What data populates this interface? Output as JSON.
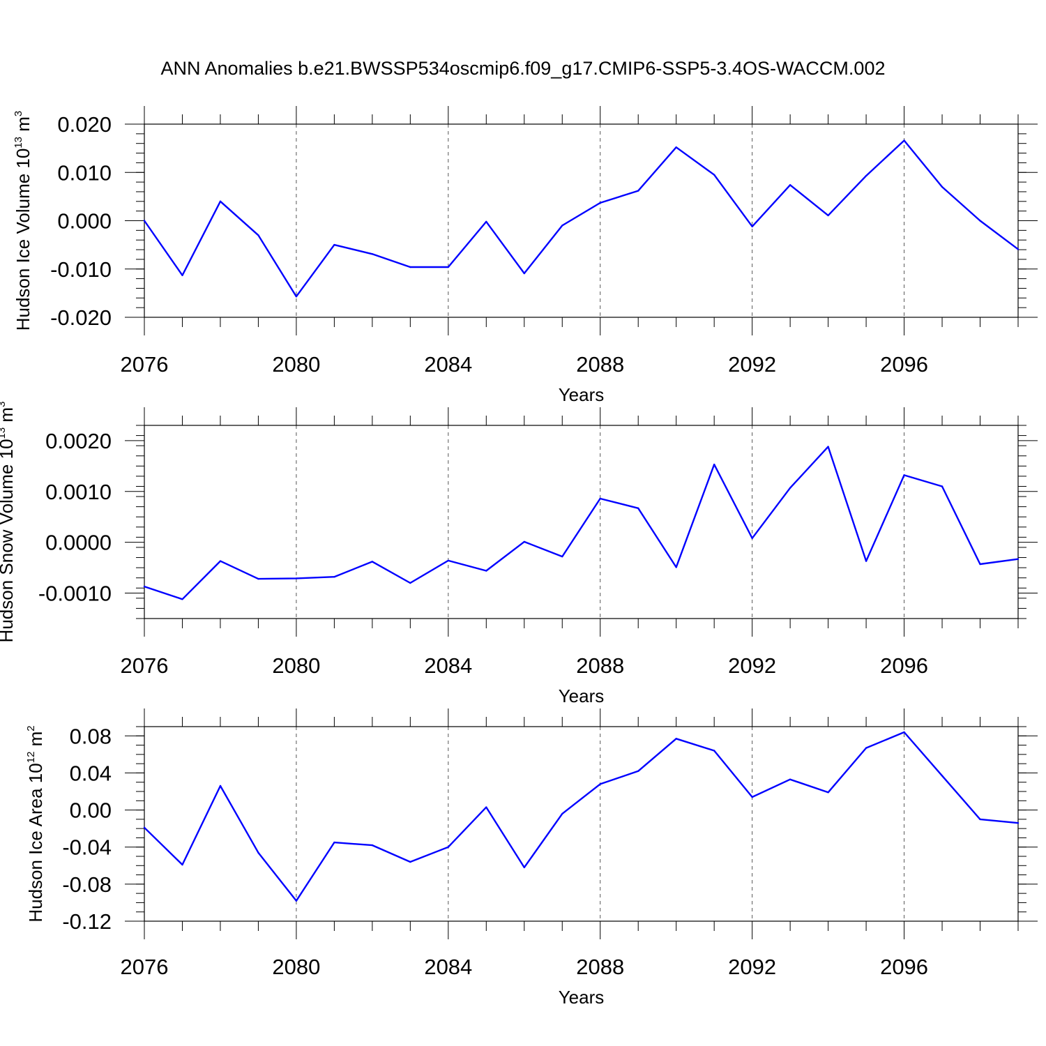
{
  "title": "ANN Anomalies b.e21.BWSSP534oscmip6.f09_g17.CMIP6-SSP5-3.4OS-WACCM.002",
  "colors": {
    "line": "#0000ff",
    "axes": "#000000",
    "grid": "#555555"
  },
  "chart_data": [
    {
      "type": "line",
      "ylabel": {
        "text": "Hudson Ice Volume 10",
        "exponent": "13",
        "unit": "m",
        "unit_exponent": "3"
      },
      "xlabel": "Years",
      "xlim": [
        2076,
        2099
      ],
      "ylim": [
        -0.02,
        0.02
      ],
      "x_ticks": [
        2076,
        2080,
        2084,
        2088,
        2092,
        2096
      ],
      "y_ticks": [
        -0.02,
        -0.01,
        0.0,
        0.01,
        0.02
      ],
      "y_tick_labels": [
        "-0.020",
        "-0.010",
        "0.000",
        "0.010",
        "0.020"
      ],
      "y_minor_step": 0.002,
      "grid": "x-major-dashed",
      "x": [
        2076,
        2077,
        2078,
        2079,
        2080,
        2081,
        2082,
        2083,
        2084,
        2085,
        2086,
        2087,
        2088,
        2089,
        2090,
        2091,
        2092,
        2093,
        2094,
        2095,
        2096,
        2097,
        2098,
        2099
      ],
      "y": [
        0.0,
        -0.0113,
        0.004,
        -0.003,
        -0.0157,
        -0.005,
        -0.0069,
        -0.0096,
        -0.0096,
        -0.0002,
        -0.0109,
        -0.001,
        0.0037,
        0.0062,
        0.0152,
        0.0095,
        -0.0012,
        0.0074,
        0.0011,
        0.0093,
        0.0166,
        0.007,
        0.0,
        -0.0059
      ]
    },
    {
      "type": "line",
      "ylabel": {
        "text": "Hudson Snow Volume 10",
        "exponent": "13",
        "unit": "m",
        "unit_exponent": "3"
      },
      "xlabel": "Years",
      "xlim": [
        2076,
        2099
      ],
      "ylim": [
        -0.0015,
        0.0023
      ],
      "x_ticks": [
        2076,
        2080,
        2084,
        2088,
        2092,
        2096
      ],
      "y_ticks": [
        -0.001,
        0.0,
        0.001,
        0.002
      ],
      "y_tick_labels": [
        "-0.0010",
        "0.0000",
        "0.0010",
        "0.0020"
      ],
      "y_minor_step": 0.0002,
      "grid": "x-major-dashed",
      "x": [
        2076,
        2077,
        2078,
        2079,
        2080,
        2081,
        2082,
        2083,
        2084,
        2085,
        2086,
        2087,
        2088,
        2089,
        2090,
        2091,
        2092,
        2093,
        2094,
        2095,
        2096,
        2097,
        2098,
        2099
      ],
      "y": [
        -0.00087,
        -0.00112,
        -0.00037,
        -0.00072,
        -0.00071,
        -0.00068,
        -0.00038,
        -0.0008,
        -0.00036,
        -0.00056,
        1e-05,
        -0.00028,
        0.00086,
        0.00067,
        -0.00049,
        0.00153,
        8e-05,
        0.00107,
        0.00188,
        -0.00037,
        0.00132,
        0.0011,
        -0.00043,
        -0.00033
      ]
    },
    {
      "type": "line",
      "ylabel": {
        "text": "Hudson Ice Area 10",
        "exponent": "12",
        "unit": "m",
        "unit_exponent": "2"
      },
      "xlabel": "Years",
      "xlim": [
        2076,
        2099
      ],
      "ylim": [
        -0.12,
        0.09
      ],
      "x_ticks": [
        2076,
        2080,
        2084,
        2088,
        2092,
        2096
      ],
      "y_ticks": [
        -0.12,
        -0.08,
        -0.04,
        0.0,
        0.04,
        0.08
      ],
      "y_tick_labels": [
        "-0.12",
        "-0.08",
        "-0.04",
        "0.00",
        "0.04",
        "0.08"
      ],
      "y_minor_step": 0.01,
      "grid": "x-major-dashed",
      "x": [
        2076,
        2077,
        2078,
        2079,
        2080,
        2081,
        2082,
        2083,
        2084,
        2085,
        2086,
        2087,
        2088,
        2089,
        2090,
        2091,
        2092,
        2093,
        2094,
        2095,
        2096,
        2097,
        2098,
        2099
      ],
      "y": [
        -0.019,
        -0.059,
        0.026,
        -0.046,
        -0.098,
        -0.035,
        -0.038,
        -0.056,
        -0.04,
        0.003,
        -0.062,
        -0.004,
        0.028,
        0.042,
        0.077,
        0.064,
        0.014,
        0.033,
        0.019,
        0.067,
        0.084,
        0.037,
        -0.01,
        -0.014
      ]
    }
  ]
}
